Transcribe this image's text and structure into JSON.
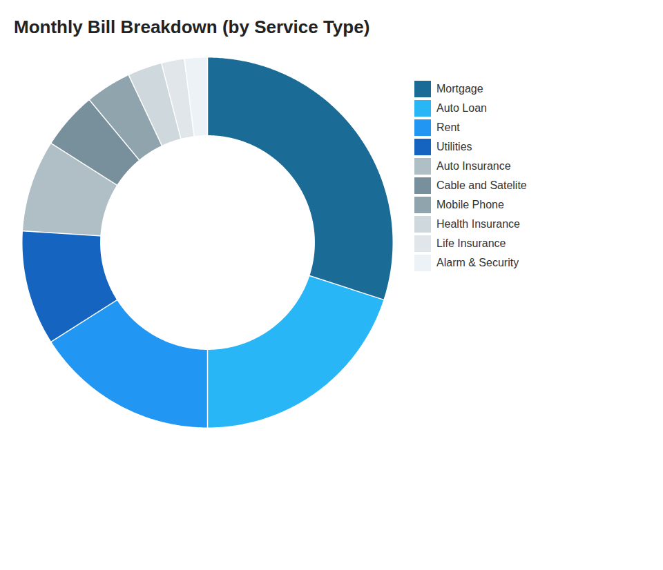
{
  "chart_data": {
    "type": "donut",
    "title": "Monthly Bill Breakdown (by Service Type)",
    "categories": [
      "Mortgage",
      "Auto Loan",
      "Rent",
      "Utilities",
      "Auto Insurance",
      "Cable and Satelite",
      "Mobile Phone",
      "Health Insurance",
      "Life Insurance",
      "Alarm & Security"
    ],
    "values": [
      30,
      20,
      16,
      10,
      8,
      5,
      4,
      3,
      2,
      2
    ],
    "colors": [
      "#1a6b96",
      "#29b6f6",
      "#2196f3",
      "#1565c0",
      "#b0bec5",
      "#78909c",
      "#90a4ae",
      "#cfd8dc",
      "#e0e6ea",
      "#ecf2f5"
    ],
    "legend": "right"
  }
}
